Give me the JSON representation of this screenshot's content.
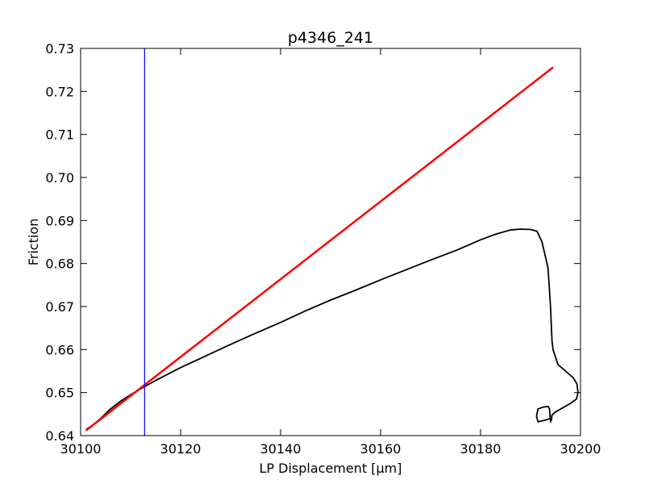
{
  "chart_data": {
    "type": "line",
    "title": "p4346_241",
    "xlabel": "LP Displacement [μm]",
    "ylabel": "Friction",
    "xlim": [
      30100,
      30200
    ],
    "ylim": [
      0.64,
      0.73
    ],
    "xticks": [
      30100,
      30120,
      30140,
      30160,
      30180,
      30200
    ],
    "yticks": [
      0.64,
      0.65,
      0.66,
      0.67,
      0.68,
      0.69,
      0.7,
      0.71,
      0.72,
      0.73
    ],
    "xtick_labels": [
      "30100",
      "30120",
      "30140",
      "30160",
      "30180",
      "30200"
    ],
    "ytick_labels": [
      "0.64",
      "0.65",
      "0.66",
      "0.67",
      "0.68",
      "0.69",
      "0.70",
      "0.71",
      "0.72",
      "0.73"
    ],
    "grid": false,
    "legend": null,
    "series": [
      {
        "kind": "data-curve",
        "color": "#000000",
        "points": [
          [
            30101.2,
            0.6415
          ],
          [
            30102.5,
            0.6425
          ],
          [
            30104,
            0.644
          ],
          [
            30106,
            0.6462
          ],
          [
            30108,
            0.648
          ],
          [
            30110,
            0.6495
          ],
          [
            30112.5,
            0.6512
          ],
          [
            30115,
            0.6528
          ],
          [
            30120,
            0.6558
          ],
          [
            30125,
            0.6585
          ],
          [
            30130,
            0.6612
          ],
          [
            30135,
            0.6638
          ],
          [
            30140,
            0.6663
          ],
          [
            30145,
            0.669
          ],
          [
            30150,
            0.6715
          ],
          [
            30155,
            0.6738
          ],
          [
            30160,
            0.6762
          ],
          [
            30165,
            0.6785
          ],
          [
            30170,
            0.6808
          ],
          [
            30175,
            0.683
          ],
          [
            30180,
            0.6855
          ],
          [
            30183,
            0.6868
          ],
          [
            30186,
            0.6878
          ],
          [
            30188,
            0.688
          ],
          [
            30190,
            0.6879
          ],
          [
            30191.3,
            0.6875
          ],
          [
            30192.3,
            0.685
          ],
          [
            30193.5,
            0.679
          ],
          [
            30194.0,
            0.67
          ],
          [
            30194.3,
            0.662
          ],
          [
            30194.5,
            0.66
          ],
          [
            30195.5,
            0.6565
          ],
          [
            30197,
            0.655
          ],
          [
            30198.5,
            0.6535
          ],
          [
            30199.3,
            0.652
          ],
          [
            30199.5,
            0.65
          ],
          [
            30199.2,
            0.6485
          ],
          [
            30198,
            0.6475
          ],
          [
            30196.5,
            0.6465
          ],
          [
            30195,
            0.6455
          ],
          [
            30194.3,
            0.6448
          ],
          [
            30194.2,
            0.6437
          ],
          [
            30194.0,
            0.6432
          ],
          [
            30193.8,
            0.6462
          ],
          [
            30193.5,
            0.6468
          ],
          [
            30192.5,
            0.6466
          ],
          [
            30191.5,
            0.6462
          ],
          [
            30191.2,
            0.6445
          ],
          [
            30191.5,
            0.6432
          ],
          [
            30193.0,
            0.6436
          ],
          [
            30194.0,
            0.644
          ],
          [
            30194.2,
            0.6436
          ]
        ]
      },
      {
        "kind": "fit-line",
        "color": "#ff0000",
        "points": [
          [
            30101.2,
            0.6413
          ],
          [
            30194.4,
            0.7255
          ]
        ]
      },
      {
        "kind": "vertical-line",
        "color": "#0000ff",
        "x": 30112.8
      }
    ]
  }
}
